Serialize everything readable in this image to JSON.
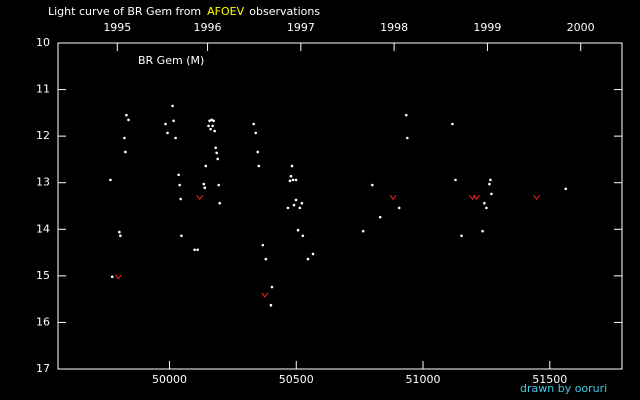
{
  "chart_data": {
    "type": "scatter",
    "title_parts": [
      "Light curve of BR Gem from",
      "AFOEV",
      "observations"
    ],
    "title_colors": [
      "#ffffff",
      "#ffff00",
      "#ffffff"
    ],
    "annotation": "BR Gem (M)",
    "credit": "drawn by ooruri",
    "credit_color": "#40c8e8",
    "xlim": [
      49560,
      51785
    ],
    "xticks": [
      50000,
      50500,
      51000,
      51500
    ],
    "x2ticks": [
      {
        "value": 49794,
        "label": "1995"
      },
      {
        "value": 50150,
        "label": "1996"
      },
      {
        "value": 50518,
        "label": "1997"
      },
      {
        "value": 50886,
        "label": "1998"
      },
      {
        "value": 51254,
        "label": "1999"
      },
      {
        "value": 51622,
        "label": "2000"
      }
    ],
    "ylim": [
      10,
      17
    ],
    "y_inverted": true,
    "yticks": [
      10,
      11,
      12,
      13,
      14,
      15,
      16,
      17
    ],
    "series": [
      {
        "color": "#ffffff",
        "marker": "dot",
        "x": [
          49767,
          49774,
          49802,
          49806,
          49822,
          49826,
          49830,
          49838,
          49984,
          49992,
          50012,
          50016,
          50024,
          50036,
          50040,
          50044,
          50047,
          50099,
          50111,
          50135,
          50139,
          50143,
          50154,
          50158,
          50162,
          50166,
          50170,
          50174,
          50178,
          50182,
          50186,
          50190,
          50194,
          50198,
          50332,
          50340,
          50348,
          50352,
          50368,
          50380,
          50404,
          50400,
          50467,
          50475,
          50483,
          50479,
          50487,
          50499,
          50491,
          50499,
          50514,
          50522,
          50507,
          50526,
          50546,
          50566,
          50764,
          50800,
          50831,
          50906,
          50934,
          50938,
          51116,
          51128,
          51152,
          51235,
          51242,
          51250,
          51262,
          51266,
          51270,
          51563
        ],
        "values": [
          12.94,
          15.02,
          14.06,
          14.14,
          12.04,
          12.34,
          11.55,
          11.65,
          11.74,
          11.93,
          11.35,
          11.67,
          12.04,
          12.83,
          13.05,
          13.35,
          14.14,
          14.44,
          14.44,
          13.03,
          13.11,
          12.64,
          11.78,
          11.67,
          11.85,
          11.65,
          11.78,
          11.67,
          11.89,
          12.25,
          12.36,
          12.49,
          13.05,
          13.44,
          11.74,
          11.93,
          12.34,
          12.64,
          14.34,
          14.64,
          15.24,
          15.63,
          13.54,
          12.96,
          12.64,
          12.86,
          12.94,
          12.94,
          13.48,
          13.37,
          13.54,
          13.44,
          14.02,
          14.14,
          14.64,
          14.53,
          14.04,
          13.05,
          13.74,
          13.54,
          11.55,
          12.04,
          11.74,
          12.94,
          14.14,
          14.04,
          13.44,
          13.54,
          13.03,
          12.94,
          13.24,
          13.13
        ]
      },
      {
        "color": "#ff2020",
        "marker": "v",
        "x": [
          49798,
          50119,
          50376,
          50882,
          51195,
          51211,
          51448
        ],
        "values": [
          15.02,
          13.31,
          15.41,
          13.31,
          13.31,
          13.31,
          13.31
        ]
      }
    ]
  }
}
